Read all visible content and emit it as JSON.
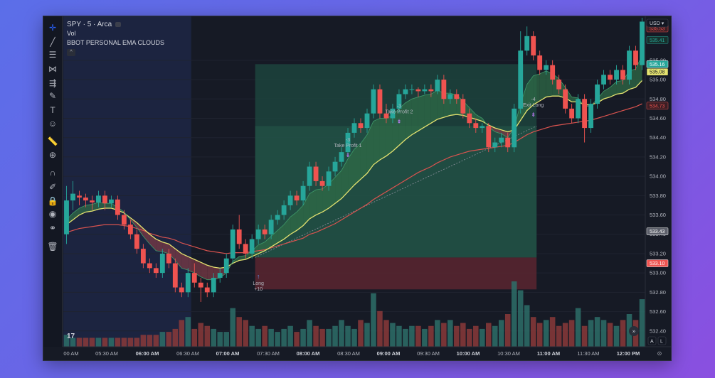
{
  "legend": {
    "symbol": "SPY · 5 · Arca",
    "vol": "Vol",
    "indicator": "BBOT PERSONAL EMA CLOUDS",
    "collapse": "^"
  },
  "currency": "USD",
  "axis_buttons": {
    "auto": "A",
    "log": "L"
  },
  "tv_logo": "17",
  "toolbar_icons": [
    "crosshair-icon",
    "trend-line-icon",
    "fib-icon",
    "pattern-icon",
    "prediction-icon",
    "brush-icon",
    "text-icon",
    "emoji-icon",
    "ruler-icon",
    "zoom-in-icon",
    "magnet-icon",
    "lock-draw-icon",
    "lock-icon",
    "eye-icon",
    "link-icon",
    "trash-icon"
  ],
  "colors": {
    "up": "#26a69a",
    "down": "#ef5350",
    "ema_fast": "#e5e370",
    "ema_slow": "#d9534f",
    "cloud_up": "#2f6b47",
    "cloud_down": "#7a3a45",
    "profit_zone": "#1e4a40",
    "loss_zone": "#5a2630",
    "bg": "#161a25"
  },
  "chart_data": {
    "type": "candlestick",
    "ylim": [
      532.2,
      535.64
    ],
    "y_ticks": [
      "535.20",
      "535.00",
      "534.80",
      "534.60",
      "534.40",
      "534.20",
      "534.00",
      "533.80",
      "533.60",
      "533.40",
      "533.20",
      "533.00",
      "532.80",
      "532.60",
      "532.40"
    ],
    "x_ticks": [
      {
        "label": "00 AM",
        "bold": false
      },
      {
        "label": "05:30 AM",
        "bold": false
      },
      {
        "label": "06:00 AM",
        "bold": true
      },
      {
        "label": "06:30 AM",
        "bold": false
      },
      {
        "label": "07:00 AM",
        "bold": true
      },
      {
        "label": "07:30 AM",
        "bold": false
      },
      {
        "label": "08:00 AM",
        "bold": true
      },
      {
        "label": "08:30 AM",
        "bold": false
      },
      {
        "label": "09:00 AM",
        "bold": true
      },
      {
        "label": "09:30 AM",
        "bold": false
      },
      {
        "label": "10:00 AM",
        "bold": true
      },
      {
        "label": "10:30 AM",
        "bold": false
      },
      {
        "label": "11:00 AM",
        "bold": true
      },
      {
        "label": "11:30 AM",
        "bold": false
      },
      {
        "label": "12:00 PM",
        "bold": true
      }
    ],
    "candles": [
      [
        533.4,
        533.75,
        533.9,
        533.3
      ],
      [
        533.75,
        533.82,
        533.95,
        533.65
      ],
      [
        533.8,
        533.78,
        533.85,
        533.7
      ],
      [
        533.78,
        533.75,
        533.82,
        533.68
      ],
      [
        533.75,
        533.73,
        533.8,
        533.65
      ],
      [
        533.73,
        533.8,
        533.85,
        533.68
      ],
      [
        533.8,
        533.72,
        533.85,
        533.65
      ],
      [
        533.72,
        533.76,
        533.8,
        533.68
      ],
      [
        533.76,
        533.6,
        533.8,
        533.55
      ],
      [
        533.6,
        533.5,
        533.65,
        533.45
      ],
      [
        533.5,
        533.4,
        533.55,
        533.35
      ],
      [
        533.4,
        533.25,
        533.45,
        533.2
      ],
      [
        533.25,
        533.1,
        533.3,
        533.05
      ],
      [
        533.1,
        533.05,
        533.15,
        533.0
      ],
      [
        533.05,
        533.0,
        533.1,
        532.95
      ],
      [
        533.0,
        533.2,
        533.25,
        532.95
      ],
      [
        533.2,
        533.1,
        533.25,
        533.05
      ],
      [
        533.1,
        532.85,
        533.15,
        532.8
      ],
      [
        532.85,
        532.8,
        532.9,
        532.75
      ],
      [
        532.8,
        533.0,
        533.05,
        532.75
      ],
      [
        533.0,
        532.9,
        533.1,
        532.85
      ],
      [
        532.9,
        532.85,
        532.95,
        532.7
      ],
      [
        532.85,
        532.8,
        532.9,
        532.75
      ],
      [
        532.8,
        532.95,
        533.0,
        532.75
      ],
      [
        532.95,
        533.0,
        533.05,
        532.9
      ],
      [
        533.0,
        533.15,
        533.2,
        532.95
      ],
      [
        533.15,
        533.45,
        533.5,
        533.1
      ],
      [
        533.45,
        533.3,
        533.6,
        533.25
      ],
      [
        533.3,
        533.2,
        533.35,
        533.15
      ],
      [
        533.2,
        533.35,
        533.4,
        533.15
      ],
      [
        533.35,
        533.45,
        533.5,
        533.3
      ],
      [
        533.45,
        533.4,
        533.5,
        533.35
      ],
      [
        533.4,
        533.55,
        533.6,
        533.35
      ],
      [
        533.55,
        533.6,
        533.65,
        533.5
      ],
      [
        533.6,
        533.7,
        533.75,
        533.55
      ],
      [
        533.7,
        533.8,
        533.85,
        533.65
      ],
      [
        533.8,
        533.75,
        533.85,
        533.7
      ],
      [
        533.75,
        533.9,
        533.95,
        533.7
      ],
      [
        533.9,
        534.1,
        534.15,
        533.85
      ],
      [
        534.1,
        533.95,
        534.15,
        533.9
      ],
      [
        533.95,
        533.9,
        534.0,
        533.85
      ],
      [
        533.9,
        534.05,
        534.1,
        533.85
      ],
      [
        534.05,
        534.15,
        534.2,
        534.0
      ],
      [
        534.15,
        534.25,
        534.3,
        534.1
      ],
      [
        534.25,
        534.45,
        534.5,
        534.2
      ],
      [
        534.45,
        534.55,
        534.6,
        534.4
      ],
      [
        534.55,
        534.5,
        534.6,
        534.45
      ],
      [
        534.5,
        534.65,
        534.7,
        534.45
      ],
      [
        534.65,
        534.9,
        534.95,
        534.6
      ],
      [
        534.9,
        534.65,
        534.95,
        534.6
      ],
      [
        534.65,
        534.6,
        534.75,
        534.55
      ],
      [
        534.6,
        534.7,
        534.75,
        534.55
      ],
      [
        534.7,
        534.85,
        534.9,
        534.65
      ],
      [
        534.85,
        534.9,
        534.95,
        534.8
      ],
      [
        534.9,
        534.9,
        534.95,
        534.85
      ],
      [
        534.9,
        534.88,
        534.92,
        534.82
      ],
      [
        534.88,
        534.9,
        534.95,
        534.85
      ],
      [
        534.9,
        534.88,
        534.95,
        534.82
      ],
      [
        534.88,
        535.0,
        535.05,
        534.85
      ],
      [
        535.0,
        534.8,
        535.05,
        534.75
      ],
      [
        534.8,
        534.85,
        534.9,
        534.75
      ],
      [
        534.85,
        534.8,
        534.9,
        534.75
      ],
      [
        534.8,
        534.65,
        534.85,
        534.6
      ],
      [
        534.65,
        534.55,
        534.7,
        534.5
      ],
      [
        534.55,
        534.5,
        534.6,
        534.45
      ],
      [
        534.5,
        534.52,
        534.55,
        534.45
      ],
      [
        534.52,
        534.3,
        534.55,
        534.25
      ],
      [
        534.3,
        534.35,
        534.4,
        534.25
      ],
      [
        534.35,
        534.4,
        534.45,
        534.3
      ],
      [
        534.4,
        534.3,
        534.45,
        534.25
      ],
      [
        534.3,
        534.7,
        534.75,
        534.25
      ],
      [
        534.7,
        535.3,
        535.5,
        534.65
      ],
      [
        535.3,
        535.45,
        535.55,
        535.25
      ],
      [
        535.45,
        535.25,
        535.5,
        535.2
      ],
      [
        535.25,
        535.1,
        535.3,
        535.05
      ],
      [
        535.1,
        535.15,
        535.2,
        535.05
      ],
      [
        535.15,
        535.0,
        535.2,
        534.95
      ],
      [
        535.0,
        534.9,
        535.05,
        534.85
      ],
      [
        534.9,
        534.7,
        534.95,
        534.65
      ],
      [
        534.7,
        534.6,
        534.75,
        534.55
      ],
      [
        534.6,
        534.8,
        534.85,
        534.55
      ],
      [
        534.8,
        534.5,
        534.85,
        534.35
      ],
      [
        534.5,
        534.75,
        534.8,
        534.45
      ],
      [
        534.75,
        534.95,
        535.0,
        534.7
      ],
      [
        534.95,
        535.05,
        535.1,
        534.9
      ],
      [
        535.05,
        535.0,
        535.1,
        534.95
      ],
      [
        535.0,
        535.1,
        535.15,
        534.95
      ],
      [
        535.1,
        535.0,
        535.15,
        534.95
      ],
      [
        535.0,
        535.3,
        535.35,
        534.95
      ],
      [
        535.3,
        535.15,
        535.35,
        535.1
      ],
      [
        535.15,
        535.6,
        535.64,
        535.1
      ]
    ],
    "volume": [
      4,
      3,
      3,
      3,
      3,
      3,
      3,
      3,
      3,
      3,
      3,
      3,
      4,
      4,
      4,
      5,
      5,
      6,
      9,
      10,
      6,
      8,
      7,
      6,
      5,
      5,
      13,
      10,
      9,
      7,
      6,
      7,
      6,
      5,
      6,
      7,
      5,
      6,
      9,
      7,
      6,
      6,
      7,
      9,
      7,
      6,
      9,
      8,
      18,
      12,
      9,
      8,
      7,
      6,
      7,
      7,
      6,
      7,
      9,
      8,
      9,
      7,
      8,
      6,
      7,
      6,
      8,
      7,
      9,
      11,
      22,
      19,
      14,
      10,
      8,
      9,
      10,
      7,
      8,
      9,
      13,
      7,
      9,
      10,
      9,
      8,
      7,
      9,
      11,
      9,
      16
    ],
    "ema_fast": [
      533.55,
      533.62,
      533.67,
      533.7,
      533.71,
      533.73,
      533.72,
      533.72,
      533.68,
      533.63,
      533.55,
      533.47,
      533.38,
      533.3,
      533.23,
      533.22,
      533.2,
      533.13,
      533.05,
      533.03,
      533.0,
      532.96,
      532.93,
      532.93,
      532.95,
      533.0,
      533.12,
      533.17,
      533.18,
      533.23,
      533.29,
      533.32,
      533.38,
      533.44,
      533.5,
      533.58,
      533.63,
      533.7,
      533.82,
      533.86,
      533.87,
      533.92,
      533.99,
      534.06,
      534.18,
      534.28,
      534.34,
      534.43,
      534.57,
      534.6,
      534.6,
      534.63,
      534.7,
      534.76,
      534.8,
      534.82,
      534.84,
      534.85,
      534.89,
      534.86,
      534.86,
      534.84,
      534.78,
      534.71,
      534.64,
      534.6,
      534.51,
      534.46,
      534.44,
      534.4,
      534.5,
      534.75,
      534.95,
      535.04,
      535.06,
      535.09,
      535.06,
      535.01,
      534.92,
      534.82,
      534.81,
      534.72,
      534.73,
      534.8,
      534.88,
      534.92,
      534.98,
      534.99,
      535.09,
      535.11,
      535.25
    ],
    "ema_mid": [
      533.5,
      533.55,
      533.6,
      533.63,
      533.64,
      533.66,
      533.67,
      533.67,
      533.65,
      533.62,
      533.57,
      533.52,
      533.46,
      533.4,
      533.35,
      533.32,
      533.3,
      533.25,
      533.2,
      533.17,
      533.14,
      533.11,
      533.08,
      533.06,
      533.05,
      533.06,
      533.1,
      533.13,
      533.14,
      533.17,
      533.2,
      533.23,
      533.27,
      533.31,
      533.35,
      533.4,
      533.44,
      533.49,
      533.56,
      533.6,
      533.63,
      533.67,
      533.72,
      533.77,
      533.84,
      533.91,
      533.97,
      534.03,
      534.12,
      534.17,
      534.21,
      534.26,
      534.32,
      534.38,
      534.43,
      534.47,
      534.51,
      534.55,
      534.59,
      534.61,
      534.63,
      534.64,
      534.63,
      534.61,
      534.59,
      534.57,
      534.53,
      534.5,
      534.48,
      534.46,
      534.48,
      534.58,
      534.68,
      534.74,
      534.78,
      534.82,
      534.83,
      534.83,
      534.81,
      534.77,
      534.77,
      534.74,
      534.74,
      534.76,
      534.8,
      534.82,
      534.85,
      534.86,
      534.9,
      534.92,
      534.99
    ],
    "ema_slow": [
      533.42,
      533.44,
      533.46,
      533.47,
      533.48,
      533.49,
      533.5,
      533.5,
      533.5,
      533.49,
      533.48,
      533.46,
      533.44,
      533.41,
      533.39,
      533.37,
      533.36,
      533.34,
      533.31,
      533.29,
      533.27,
      533.25,
      533.23,
      533.22,
      533.21,
      533.2,
      533.21,
      533.21,
      533.21,
      533.22,
      533.23,
      533.24,
      533.26,
      533.28,
      533.3,
      533.32,
      533.34,
      533.36,
      533.4,
      533.42,
      533.45,
      533.48,
      533.51,
      533.55,
      533.59,
      533.63,
      533.67,
      533.71,
      533.76,
      533.8,
      533.84,
      533.88,
      533.92,
      533.96,
      534.0,
      534.04,
      534.07,
      534.1,
      534.14,
      534.17,
      534.2,
      534.22,
      534.24,
      534.26,
      534.27,
      534.28,
      534.29,
      534.3,
      534.31,
      534.32,
      534.35,
      534.39,
      534.43,
      534.46,
      534.48,
      534.5,
      534.52,
      534.53,
      534.54,
      534.55,
      534.56,
      534.57,
      534.58,
      534.6,
      534.62,
      534.64,
      534.66,
      534.68,
      534.7,
      534.72,
      534.75
    ],
    "trade": {
      "entry": 533.16,
      "target": 535.16,
      "stop": 532.83,
      "start_index": 30,
      "end_index": 73,
      "mid": 534.52
    },
    "annotations": [
      {
        "index": 30,
        "price": 533.0,
        "lines": [
          "Long",
          "+10"
        ],
        "arrow": "up",
        "color": "#5b9cf6"
      },
      {
        "index": 44,
        "price": 534.2,
        "lines": [
          "-3",
          "Take Profit 1"
        ],
        "arrow": "down",
        "color": "#c77dff"
      },
      {
        "index": 52,
        "price": 534.55,
        "lines": [
          "-3",
          "Take Profit 2"
        ],
        "arrow": "down",
        "color": "#c77dff"
      },
      {
        "index": 73,
        "price": 534.62,
        "lines": [
          "-4",
          "Exit Long"
        ],
        "arrow": "down",
        "color": "#c77dff"
      }
    ],
    "price_tags": [
      {
        "value": "535.53",
        "color": "#ef5350",
        "fill": "#3a1e24"
      },
      {
        "value": "535.41",
        "color": "#26a69a",
        "fill": "#17302c"
      },
      {
        "value": "535.16",
        "color": "#ffffff",
        "fill": "#26a69a"
      },
      {
        "value": "535.08",
        "color": "#131722",
        "fill": "#e5e370"
      },
      {
        "value": "534.73",
        "color": "#ef5350",
        "fill": "#3a1e24"
      },
      {
        "value": "533.43",
        "color": "#ffffff",
        "fill": "#5d606b"
      },
      {
        "value": "533.10",
        "color": "#ffffff",
        "fill": "#ef5350"
      }
    ]
  }
}
